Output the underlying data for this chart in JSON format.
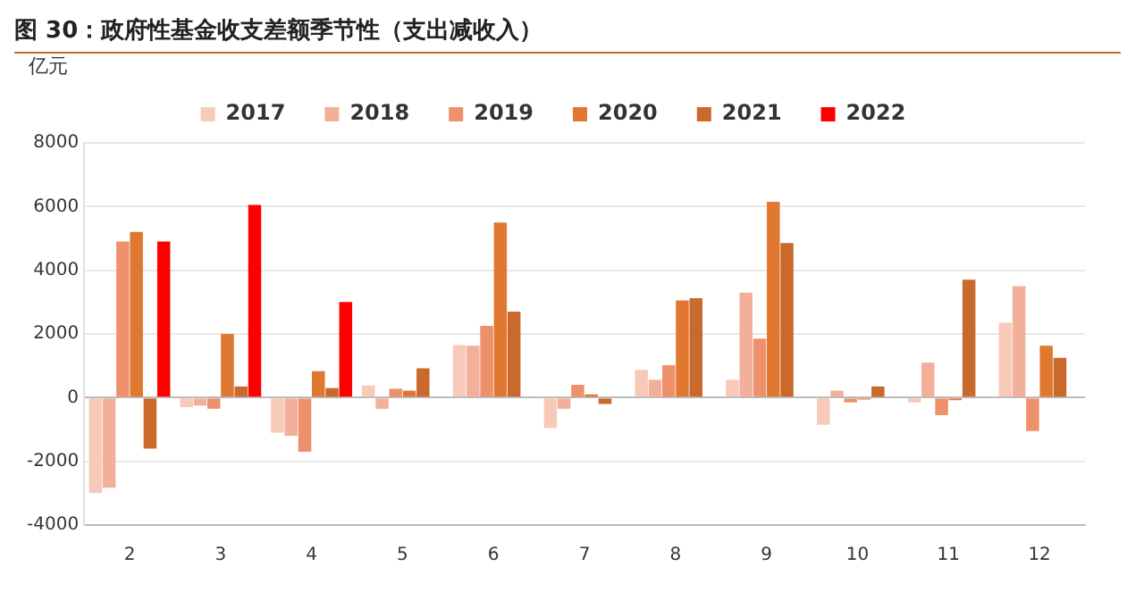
{
  "chart_data": {
    "type": "bar",
    "title": "图 30：政府性基金收支差额季节性（支出减收入）",
    "ylabel": "亿元",
    "categories": [
      "2",
      "3",
      "4",
      "5",
      "6",
      "7",
      "8",
      "9",
      "10",
      "11",
      "12"
    ],
    "series": [
      {
        "name": "2017",
        "color": "#f6c9b9",
        "values": [
          -3000,
          -300,
          -1100,
          380,
          1650,
          -950,
          870,
          560,
          -850,
          -150,
          2350
        ]
      },
      {
        "name": "2018",
        "color": "#f2b09a",
        "values": [
          -2830,
          -250,
          -1200,
          -350,
          1630,
          -350,
          560,
          3300,
          220,
          1100,
          3500
        ]
      },
      {
        "name": "2019",
        "color": "#ee916a",
        "values": [
          4900,
          -350,
          -1700,
          280,
          2250,
          400,
          1020,
          1850,
          -150,
          -550,
          -1050
        ]
      },
      {
        "name": "2020",
        "color": "#e07832",
        "values": [
          5200,
          2000,
          830,
          220,
          5500,
          100,
          3050,
          6150,
          -60,
          -80,
          1630
        ]
      },
      {
        "name": "2021",
        "color": "#c9692b",
        "values": [
          -1600,
          350,
          300,
          920,
          2700,
          -200,
          3120,
          4850,
          350,
          3700,
          1250
        ]
      },
      {
        "name": "2022",
        "color": "#ff0000",
        "values": [
          4900,
          6050,
          3000,
          null,
          null,
          null,
          null,
          null,
          null,
          null,
          null
        ]
      }
    ],
    "ylim": [
      -4000,
      8000
    ],
    "yticks": [
      -4000,
      -2000,
      0,
      2000,
      4000,
      6000,
      8000
    ],
    "grid": "y",
    "legend": "top"
  }
}
